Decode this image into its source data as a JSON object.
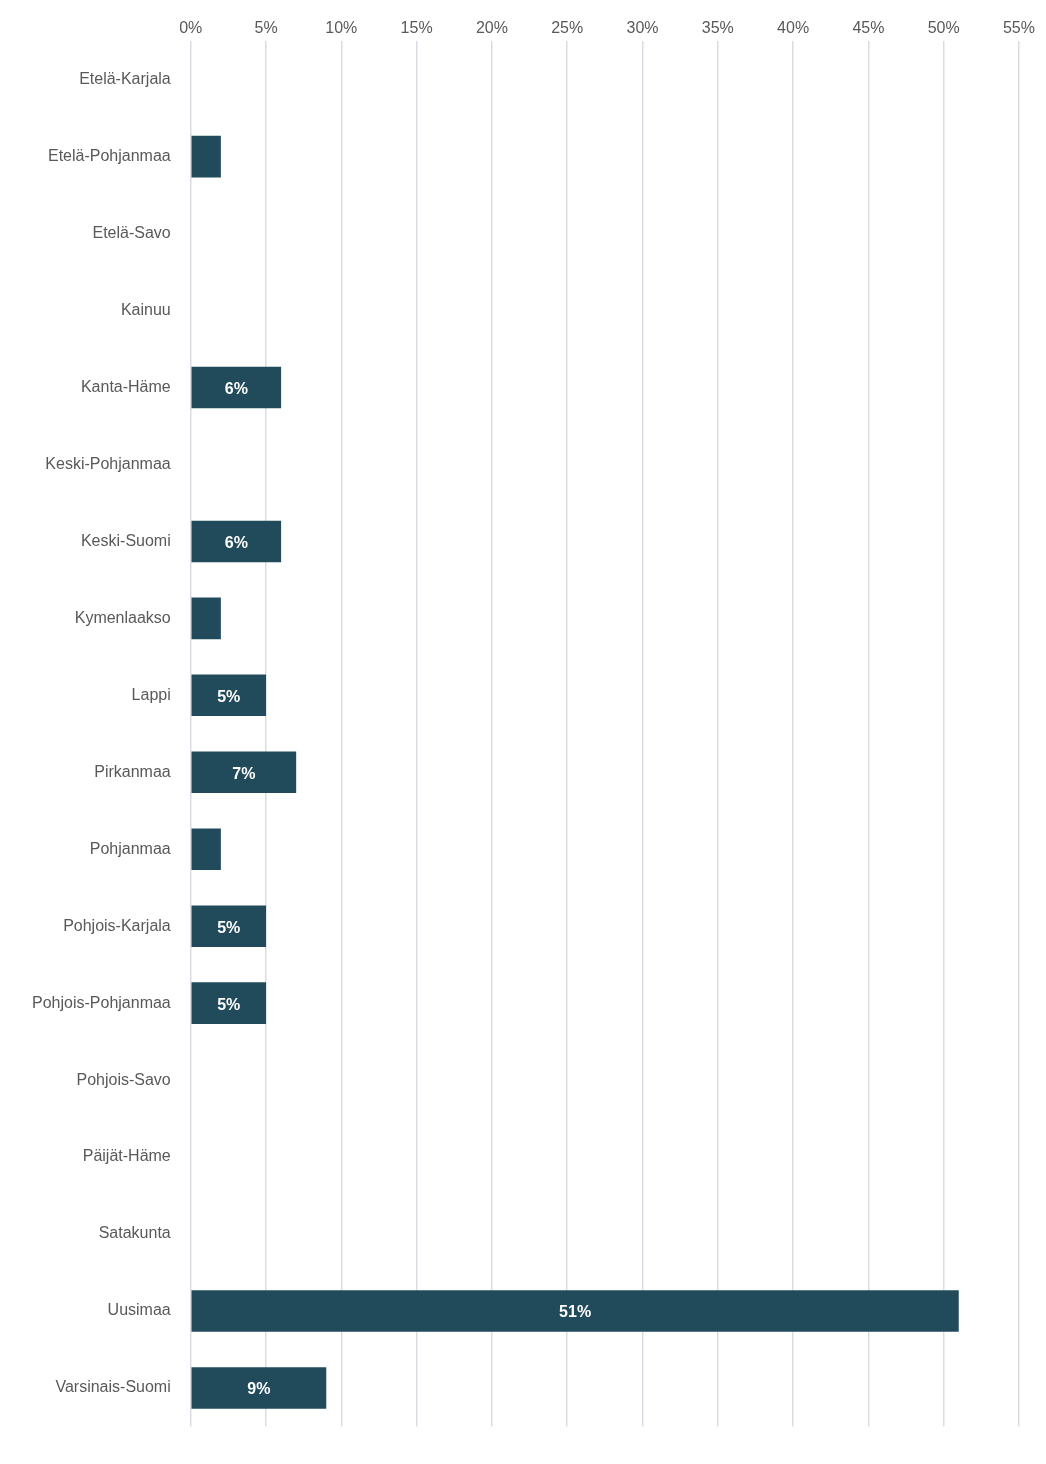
{
  "chart_data": {
    "type": "bar",
    "orientation": "horizontal",
    "categories": [
      "Etelä-Karjala",
      "Etelä-Pohjanmaa",
      "Etelä-Savo",
      "Kainuu",
      "Kanta-Häme",
      "Keski-Pohjanmaa",
      "Keski-Suomi",
      "Kymenlaakso",
      "Lappi",
      "Pirkanmaa",
      "Pohjanmaa",
      "Pohjois-Karjala",
      "Pohjois-Pohjanmaa",
      "Pohjois-Savo",
      "Päijät-Häme",
      "Satakunta",
      "Uusimaa",
      "Varsinais-Suomi"
    ],
    "values": [
      0,
      2,
      0,
      0,
      6,
      0,
      6,
      2,
      5,
      7,
      2,
      5,
      5,
      0,
      0,
      0,
      51,
      9
    ],
    "value_labels": [
      null,
      null,
      null,
      null,
      "6%",
      null,
      "6%",
      null,
      "5%",
      "7%",
      null,
      "5%",
      "5%",
      null,
      null,
      null,
      "51%",
      "9%"
    ],
    "color": "#214b5a",
    "xlim": [
      0,
      55
    ],
    "xticks": [
      {
        "value": 0,
        "label": "0%"
      },
      {
        "value": 5,
        "label": "5%"
      },
      {
        "value": 10,
        "label": "10%"
      },
      {
        "value": 15,
        "label": "15%"
      },
      {
        "value": 20,
        "label": "20%"
      },
      {
        "value": 25,
        "label": "25%"
      },
      {
        "value": 30,
        "label": "30%"
      },
      {
        "value": 35,
        "label": "35%"
      },
      {
        "value": 40,
        "label": "40%"
      },
      {
        "value": 45,
        "label": "45%"
      },
      {
        "value": 50,
        "label": "50%"
      },
      {
        "value": 55,
        "label": "55%"
      }
    ],
    "grid": "x",
    "legend": false
  }
}
